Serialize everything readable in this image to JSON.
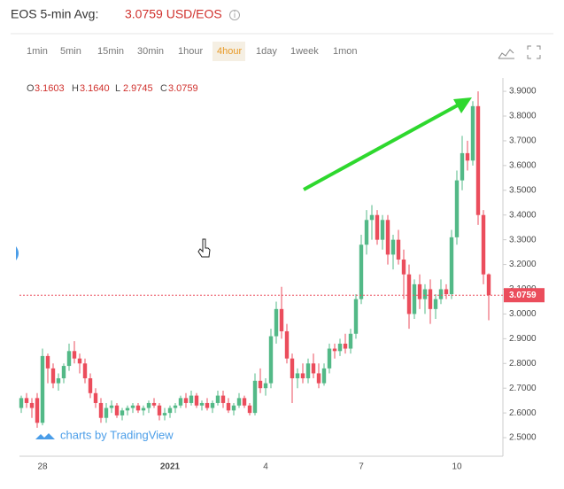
{
  "header": {
    "title": "EOS 5-min Avg:",
    "price": "3.0759 USD/EOS"
  },
  "timeframes": [
    "1min",
    "5min",
    "15min",
    "30min",
    "1hour",
    "4hour",
    "1day",
    "1week",
    "1mon"
  ],
  "active_timeframe": 5,
  "watermark": "charts by TradingView",
  "chart_data": {
    "type": "candlestick",
    "up_color": "#53b987",
    "down_color": "#eb4d5c",
    "legend_letters": [
      "O",
      "H",
      "L",
      "C"
    ],
    "last_candle_labels": [
      "3.1603",
      "3.1640",
      "2.9745",
      "3.0759"
    ],
    "categories": [
      null,
      null,
      null,
      null,
      "28",
      null,
      null,
      null,
      null,
      null,
      null,
      null,
      null,
      null,
      null,
      null,
      null,
      null,
      null,
      null,
      null,
      null,
      null,
      null,
      null,
      null,
      null,
      null,
      "2021",
      null,
      null,
      null,
      null,
      null,
      null,
      null,
      null,
      null,
      null,
      null,
      null,
      null,
      null,
      null,
      null,
      null,
      "4",
      null,
      null,
      null,
      null,
      null,
      null,
      null,
      null,
      null,
      null,
      null,
      null,
      null,
      null,
      null,
      null,
      null,
      "7",
      null,
      null,
      null,
      null,
      null,
      null,
      null,
      null,
      null,
      null,
      null,
      null,
      null,
      null,
      null,
      null,
      null,
      "10",
      null,
      null,
      null,
      null,
      null,
      null
    ],
    "ohlc": [
      [
        2.62,
        2.67,
        2.6,
        2.66
      ],
      [
        2.66,
        2.68,
        2.62,
        2.64
      ],
      [
        2.64,
        2.66,
        2.58,
        2.62
      ],
      [
        2.66,
        2.68,
        2.54,
        2.56
      ],
      [
        2.56,
        2.86,
        2.55,
        2.83
      ],
      [
        2.83,
        2.84,
        2.72,
        2.78
      ],
      [
        2.78,
        2.8,
        2.7,
        2.72
      ],
      [
        2.72,
        2.76,
        2.69,
        2.74
      ],
      [
        2.74,
        2.8,
        2.72,
        2.79
      ],
      [
        2.79,
        2.88,
        2.77,
        2.85
      ],
      [
        2.85,
        2.89,
        2.8,
        2.82
      ],
      [
        2.82,
        2.84,
        2.76,
        2.8
      ],
      [
        2.8,
        2.82,
        2.72,
        2.74
      ],
      [
        2.74,
        2.76,
        2.66,
        2.68
      ],
      [
        2.68,
        2.7,
        2.62,
        2.64
      ],
      [
        2.64,
        2.66,
        2.56,
        2.58
      ],
      [
        2.58,
        2.64,
        2.56,
        2.62
      ],
      [
        2.62,
        2.65,
        2.6,
        2.63
      ],
      [
        2.63,
        2.64,
        2.58,
        2.59
      ],
      [
        2.59,
        2.62,
        2.57,
        2.61
      ],
      [
        2.61,
        2.63,
        2.59,
        2.62
      ],
      [
        2.62,
        2.64,
        2.6,
        2.63
      ],
      [
        2.63,
        2.64,
        2.6,
        2.61
      ],
      [
        2.61,
        2.63,
        2.59,
        2.62
      ],
      [
        2.62,
        2.65,
        2.6,
        2.64
      ],
      [
        2.64,
        2.66,
        2.62,
        2.63
      ],
      [
        2.63,
        2.64,
        2.57,
        2.59
      ],
      [
        2.59,
        2.62,
        2.57,
        2.6
      ],
      [
        2.6,
        2.63,
        2.58,
        2.62
      ],
      [
        2.62,
        2.64,
        2.6,
        2.63
      ],
      [
        2.63,
        2.67,
        2.62,
        2.66
      ],
      [
        2.66,
        2.68,
        2.62,
        2.64
      ],
      [
        2.64,
        2.69,
        2.63,
        2.67
      ],
      [
        2.67,
        2.68,
        2.62,
        2.63
      ],
      [
        2.63,
        2.65,
        2.61,
        2.64
      ],
      [
        2.64,
        2.66,
        2.61,
        2.62
      ],
      [
        2.62,
        2.65,
        2.6,
        2.64
      ],
      [
        2.64,
        2.69,
        2.63,
        2.67
      ],
      [
        2.67,
        2.69,
        2.62,
        2.64
      ],
      [
        2.64,
        2.66,
        2.6,
        2.61
      ],
      [
        2.61,
        2.64,
        2.59,
        2.63
      ],
      [
        2.63,
        2.68,
        2.62,
        2.66
      ],
      [
        2.66,
        2.67,
        2.62,
        2.63
      ],
      [
        2.63,
        2.64,
        2.59,
        2.6
      ],
      [
        2.6,
        2.76,
        2.59,
        2.73
      ],
      [
        2.73,
        2.78,
        2.68,
        2.7
      ],
      [
        2.7,
        2.74,
        2.67,
        2.72
      ],
      [
        2.72,
        2.94,
        2.7,
        2.91
      ],
      [
        2.91,
        3.05,
        2.88,
        3.02
      ],
      [
        3.02,
        3.11,
        2.9,
        2.93
      ],
      [
        2.93,
        2.96,
        2.8,
        2.82
      ],
      [
        2.82,
        2.84,
        2.64,
        2.74
      ],
      [
        2.74,
        2.78,
        2.7,
        2.76
      ],
      [
        2.76,
        2.8,
        2.72,
        2.74
      ],
      [
        2.74,
        2.82,
        2.72,
        2.8
      ],
      [
        2.8,
        2.84,
        2.74,
        2.76
      ],
      [
        2.76,
        2.8,
        2.7,
        2.72
      ],
      [
        2.72,
        2.8,
        2.71,
        2.78
      ],
      [
        2.78,
        2.88,
        2.76,
        2.86
      ],
      [
        2.86,
        2.88,
        2.82,
        2.85
      ],
      [
        2.85,
        2.9,
        2.83,
        2.88
      ],
      [
        2.88,
        2.92,
        2.84,
        2.86
      ],
      [
        2.86,
        2.94,
        2.84,
        2.92
      ],
      [
        2.92,
        3.08,
        2.9,
        3.06
      ],
      [
        3.06,
        3.32,
        3.04,
        3.28
      ],
      [
        3.28,
        3.42,
        3.24,
        3.38
      ],
      [
        3.38,
        3.44,
        3.3,
        3.4
      ],
      [
        3.4,
        3.42,
        3.28,
        3.3
      ],
      [
        3.3,
        3.4,
        3.26,
        3.38
      ],
      [
        3.38,
        3.4,
        3.2,
        3.24
      ],
      [
        3.24,
        3.32,
        3.18,
        3.3
      ],
      [
        3.3,
        3.34,
        3.2,
        3.22
      ],
      [
        3.22,
        3.26,
        3.06,
        3.16
      ],
      [
        3.16,
        3.2,
        2.94,
        3.0
      ],
      [
        3.0,
        3.14,
        2.98,
        3.12
      ],
      [
        3.12,
        3.16,
        3.02,
        3.06
      ],
      [
        3.06,
        3.12,
        3.0,
        3.1
      ],
      [
        3.1,
        3.14,
        2.96,
        3.02
      ],
      [
        3.02,
        3.08,
        2.98,
        3.06
      ],
      [
        3.06,
        3.14,
        3.04,
        3.1
      ],
      [
        3.1,
        3.12,
        3.06,
        3.08
      ],
      [
        3.08,
        3.34,
        3.06,
        3.31
      ],
      [
        3.31,
        3.58,
        3.28,
        3.54
      ],
      [
        3.54,
        3.72,
        3.5,
        3.65
      ],
      [
        3.65,
        3.7,
        3.58,
        3.62
      ],
      [
        3.62,
        3.86,
        3.6,
        3.84
      ],
      [
        3.84,
        3.9,
        3.36,
        3.4
      ],
      [
        3.4,
        3.42,
        3.12,
        3.16
      ],
      [
        3.1603,
        3.164,
        2.9745,
        3.0759
      ]
    ],
    "ylim": [
      2.425,
      3.954
    ],
    "yticks": [
      {
        "value": 2.5,
        "label": "2.5000"
      },
      {
        "value": 2.6,
        "label": "2.6000"
      },
      {
        "value": 2.7,
        "label": "2.7000"
      },
      {
        "value": 2.8,
        "label": "2.8000"
      },
      {
        "value": 2.9,
        "label": "2.9000"
      },
      {
        "value": 3,
        "label": "3.0000"
      },
      {
        "value": 3.1,
        "label": "3.1000"
      },
      {
        "value": 3.2,
        "label": "3.2000"
      },
      {
        "value": 3.3,
        "label": "3.3000"
      },
      {
        "value": 3.4,
        "label": "3.4000"
      },
      {
        "value": 3.5,
        "label": "3.5000"
      },
      {
        "value": 3.6,
        "label": "3.6000"
      },
      {
        "value": 3.7,
        "label": "3.7000"
      },
      {
        "value": 3.8,
        "label": "3.8000"
      },
      {
        "value": 3.9,
        "label": "3.9000"
      }
    ],
    "grid": false
  }
}
